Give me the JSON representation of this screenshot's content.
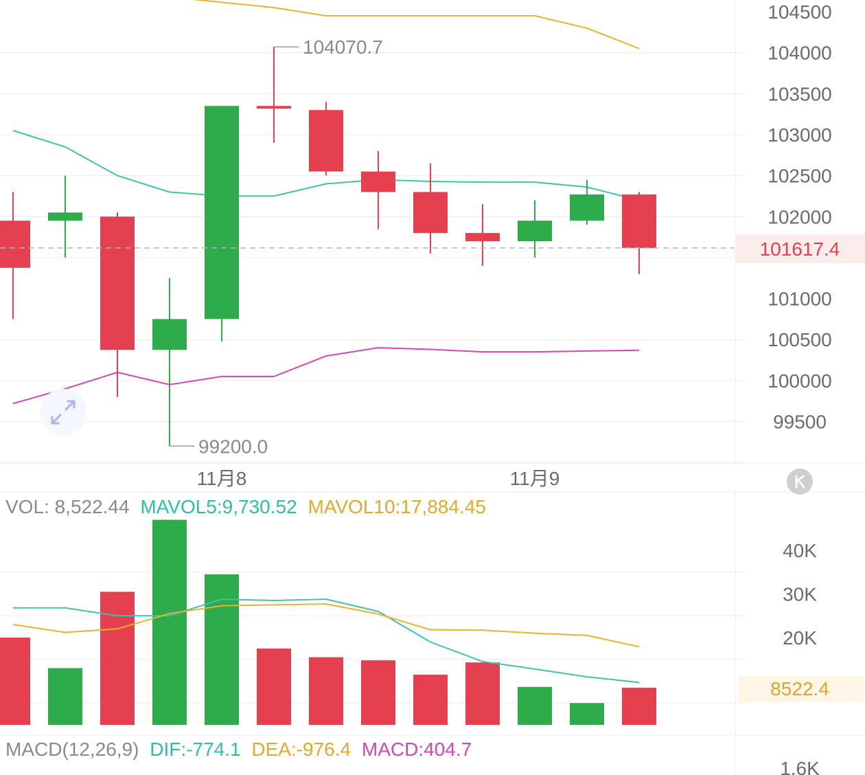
{
  "colors": {
    "up": "#2eab4b",
    "down": "#e5404f",
    "ma_upper": "#e9b42a",
    "ma_middle": "#3cc4b0",
    "ma_lower": "#d545b3",
    "grid": "#ececec",
    "axis_text": "#6b6b6b",
    "current_price": "#e5404f",
    "current_price_bg": "#fdecec",
    "current_vol": "#e3a52e",
    "current_vol_bg": "#fdf5e6"
  },
  "chart_data": [
    {
      "type": "candlestick",
      "y_ticks": [
        "104500",
        "104000",
        "103500",
        "103000",
        "102500",
        "102000",
        "101000",
        "100500",
        "100000",
        "99500"
      ],
      "y_tick_values": [
        104500,
        104000,
        103500,
        103000,
        102500,
        102000,
        101000,
        100500,
        100000,
        99500
      ],
      "x_labels": [
        {
          "label": "11月8",
          "index": 4
        },
        {
          "label": "11月9",
          "index": 10
        }
      ],
      "candles": [
        {
          "open": 101950,
          "close": 101375,
          "high": 102300,
          "low": 100750
        },
        {
          "open": 101950,
          "close": 102050,
          "high": 102500,
          "low": 101500
        },
        {
          "open": 102000,
          "close": 100375,
          "high": 102050,
          "low": 99800
        },
        {
          "open": 100375,
          "close": 100750,
          "high": 101250,
          "low": 99200
        },
        {
          "open": 100750,
          "close": 103350,
          "high": 103350,
          "low": 100475
        },
        {
          "open": 103350,
          "close": 103320,
          "high": 104070.7,
          "low": 102900
        },
        {
          "open": 103300,
          "close": 102550,
          "high": 103400,
          "low": 102500
        },
        {
          "open": 102550,
          "close": 102300,
          "high": 102800,
          "low": 101850
        },
        {
          "open": 102300,
          "close": 101800,
          "high": 102650,
          "low": 101550
        },
        {
          "open": 101800,
          "close": 101700,
          "high": 102150,
          "low": 101400
        },
        {
          "open": 101700,
          "close": 101950,
          "high": 102200,
          "low": 101500
        },
        {
          "open": 101950,
          "close": 102270,
          "high": 102450,
          "low": 101900
        },
        {
          "open": 102270,
          "close": 101617.4,
          "high": 102300,
          "low": 101300
        }
      ],
      "bands": {
        "upper": [
          null,
          null,
          null,
          null,
          104800,
          104550,
          104450,
          104450,
          104450,
          104450,
          104450,
          104300,
          104050
        ],
        "middle": [
          103050,
          102850,
          102500,
          102300,
          102250,
          102250,
          102400,
          102450,
          102430,
          102420,
          102420,
          102360,
          102200
        ],
        "lower": [
          99720,
          99900,
          100100,
          99950,
          100050,
          100050,
          100300,
          100400,
          100380,
          100350,
          100350,
          100360,
          100370
        ]
      },
      "max_label": "104070.7",
      "max_value": 104070.7,
      "max_index": 5,
      "min_label": "99200.0",
      "min_value": 99200.0,
      "min_index": 3,
      "current_price_label": "101617.4",
      "current_price": 101617.4
    },
    {
      "type": "bar",
      "legend": {
        "vol_prefix": "VOL: 8,522.44",
        "mavol5": "MAVOL5:9,730.52",
        "mavol10": "MAVOL10:17,884.45"
      },
      "y_ticks": [
        "40K",
        "30K",
        "20K"
      ],
      "y_tick_values": [
        40000,
        30000,
        20000
      ],
      "volumes": [
        20000,
        13000,
        30500,
        47000,
        34500,
        17500,
        15500,
        14800,
        11500,
        14300,
        8700,
        5000,
        8522.4
      ],
      "mavol5": [
        26800,
        26800,
        25000,
        25000,
        28800,
        28500,
        28800,
        26000,
        19000,
        14500,
        12800,
        11000,
        9730.52
      ],
      "mavol10": [
        23000,
        21200,
        22000,
        25500,
        27300,
        27500,
        27700,
        25400,
        21800,
        21700,
        21000,
        20500,
        17884.45
      ],
      "current_vol_label": "8522.4",
      "current_vol": 8522.4
    },
    {
      "type": "line",
      "legend": {
        "name": "MACD(12,26,9)",
        "dif": "DIF:-774.1",
        "dea": "DEA:-976.4",
        "macd": "MACD:404.7"
      },
      "y_ticks": [
        "1.6K"
      ]
    }
  ]
}
